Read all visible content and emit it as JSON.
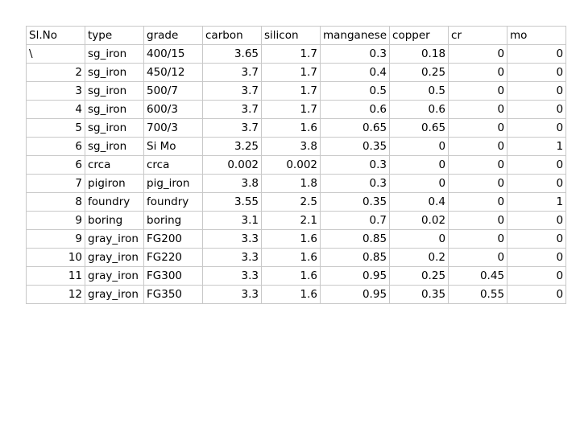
{
  "sheet": {
    "headers": [
      "Sl.No",
      "type",
      "grade",
      "carbon",
      "silicon",
      "manganese",
      "copper",
      "cr",
      "mo"
    ],
    "rows": [
      [
        "\\",
        "sg_iron",
        "400/15",
        "3.65",
        "1.7",
        "0.3",
        "0.18",
        "0",
        "0"
      ],
      [
        "2",
        "sg_iron",
        "450/12",
        "3.7",
        "1.7",
        "0.4",
        "0.25",
        "0",
        "0"
      ],
      [
        "3",
        "sg_iron",
        "500/7",
        "3.7",
        "1.7",
        "0.5",
        "0.5",
        "0",
        "0"
      ],
      [
        "4",
        "sg_iron",
        "600/3",
        "3.7",
        "1.7",
        "0.6",
        "0.6",
        "0",
        "0"
      ],
      [
        "5",
        "sg_iron",
        "700/3",
        "3.7",
        "1.6",
        "0.65",
        "0.65",
        "0",
        "0"
      ],
      [
        "6",
        "sg_iron",
        "Si Mo",
        "3.25",
        "3.8",
        "0.35",
        "0",
        "0",
        "1"
      ],
      [
        "6",
        "crca",
        "crca",
        "0.002",
        "0.002",
        "0.3",
        "0",
        "0",
        "0"
      ],
      [
        "7",
        "pigiron",
        "pig_iron",
        "3.8",
        "1.8",
        "0.3",
        "0",
        "0",
        "0"
      ],
      [
        "8",
        "foundry",
        "foundry",
        "3.55",
        "2.5",
        "0.35",
        "0.4",
        "0",
        "1"
      ],
      [
        "9",
        "boring",
        "boring",
        "3.1",
        "2.1",
        "0.7",
        "0.02",
        "0",
        "0"
      ],
      [
        "9",
        "gray_iron",
        "FG200",
        "3.3",
        "1.6",
        "0.85",
        "0",
        "0",
        "0"
      ],
      [
        "10",
        "gray_iron",
        "FG220",
        "3.3",
        "1.6",
        "0.85",
        "0.2",
        "0",
        "0"
      ],
      [
        "11",
        "gray_iron",
        "FG300",
        "3.3",
        "1.6",
        "0.95",
        "0.25",
        "0.45",
        "0"
      ],
      [
        "12",
        "gray_iron",
        "FG350",
        "3.3",
        "1.6",
        "0.95",
        "0.35",
        "0.55",
        "0"
      ]
    ]
  }
}
